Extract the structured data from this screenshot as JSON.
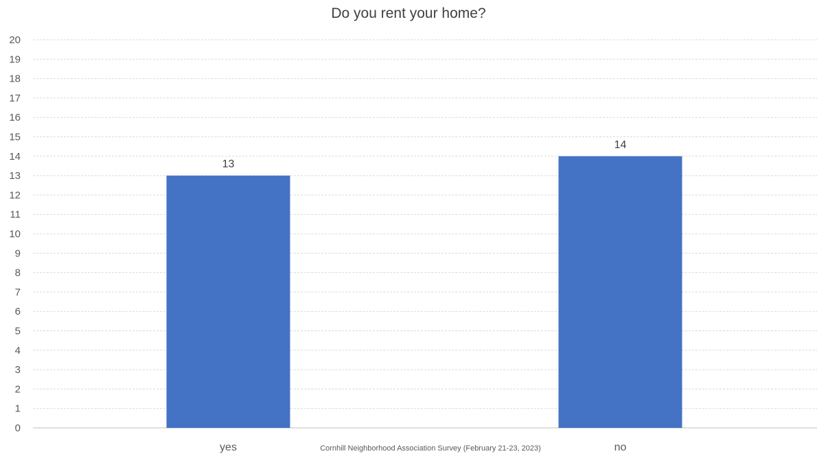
{
  "chart_data": {
    "type": "bar",
    "title": "Do you rent your home?",
    "categories": [
      "yes",
      "no"
    ],
    "values": [
      13,
      14
    ],
    "xlabel": "",
    "ylabel": "",
    "ylim": [
      0,
      20
    ],
    "yticks": [
      0,
      1,
      2,
      3,
      4,
      5,
      6,
      7,
      8,
      9,
      10,
      11,
      12,
      13,
      14,
      15,
      16,
      17,
      18,
      19,
      20
    ],
    "grid": true,
    "data_labels": true,
    "bar_color": "#4472C4",
    "source": "Cornhill Neighborhood Association Survey (February 21-23, 2023)"
  }
}
